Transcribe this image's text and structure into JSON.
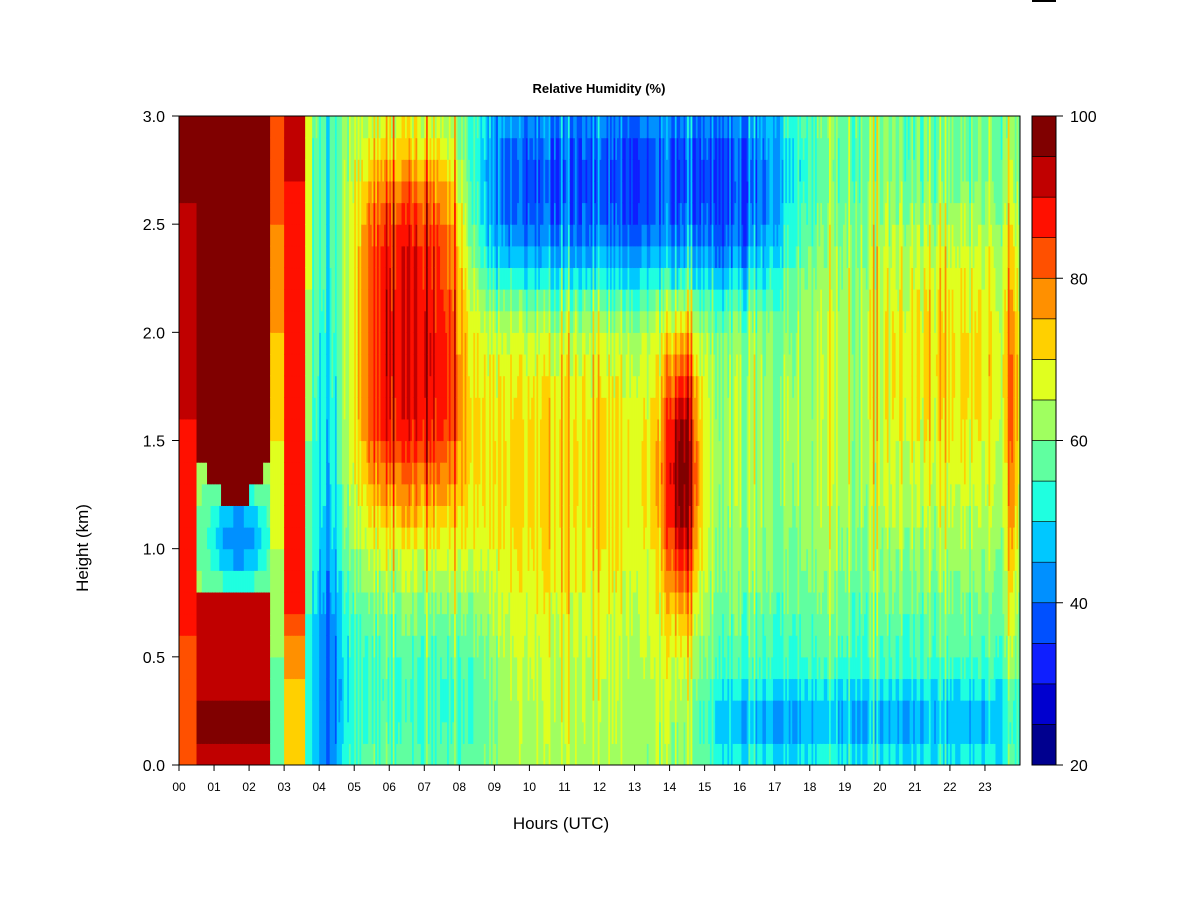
{
  "chart_data": {
    "type": "heatmap",
    "title": "Relative Humidity (%)",
    "xlabel": "Hours (UTC)",
    "ylabel": "Height (km)",
    "x_ticks": [
      "00",
      "01",
      "02",
      "03",
      "04",
      "05",
      "06",
      "07",
      "08",
      "09",
      "10",
      "11",
      "12",
      "13",
      "14",
      "15",
      "16",
      "17",
      "18",
      "19",
      "20",
      "21",
      "22",
      "23"
    ],
    "xlim": [
      0,
      24
    ],
    "y_ticks": [
      "0.0",
      "0.5",
      "1.0",
      "1.5",
      "2.0",
      "2.5",
      "3.0"
    ],
    "ylim": [
      0,
      3.0
    ],
    "colorbar": {
      "range": [
        20,
        100
      ],
      "step": 5,
      "tick_labels": [
        "20",
        "40",
        "60",
        "80",
        "100"
      ],
      "colors": [
        "#00008F",
        "#0000CF",
        "#0F1FFF",
        "#0050FF",
        "#0090FF",
        "#00C8FF",
        "#1FFFE0",
        "#60FFA0",
        "#A0FF60",
        "#E0FF1F",
        "#FFD000",
        "#FF9000",
        "#FF5000",
        "#FF1000",
        "#C00000",
        "#800000"
      ]
    },
    "field_summary": [
      {
        "hours": [
          0,
          2.6
        ],
        "heights_km": [
          1.5,
          3.0
        ],
        "rh": 100
      },
      {
        "hours": [
          0.5,
          2.5
        ],
        "heights_km": [
          0.0,
          0.8
        ],
        "rh": 95
      },
      {
        "hours": [
          0.7,
          2.3
        ],
        "heights_km": [
          0.8,
          1.4
        ],
        "rh": 50
      },
      {
        "hours": [
          2.8,
          3.5
        ],
        "heights_km": [
          0.5,
          3.0
        ],
        "rh": 95
      },
      {
        "hours": [
          3.8,
          4.5
        ],
        "heights_km": [
          0.0,
          3.0
        ],
        "rh": 45
      },
      {
        "hours": [
          5.5,
          7.5
        ],
        "heights_km": [
          1.4,
          2.7
        ],
        "rh": 95
      },
      {
        "hours": [
          9,
          17
        ],
        "heights_km": [
          2.3,
          3.0
        ],
        "rh": 30
      },
      {
        "hours": [
          14,
          14.8
        ],
        "heights_km": [
          0.8,
          2.0
        ],
        "rh": 100
      },
      {
        "hours": [
          15,
          23.8
        ],
        "heights_km": [
          0.0,
          0.4
        ],
        "rh": 38
      },
      {
        "hours": [
          8,
          14
        ],
        "heights_km": [
          0.8,
          1.8
        ],
        "rh": 72
      }
    ]
  }
}
